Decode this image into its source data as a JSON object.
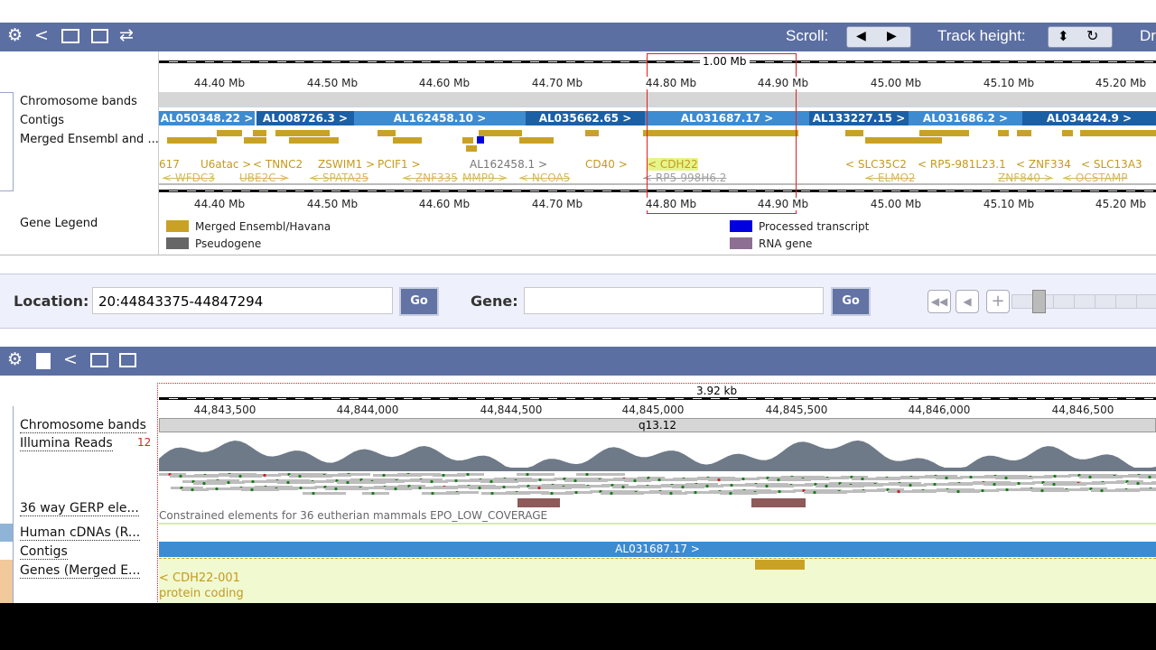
{
  "toolbar_top": {
    "scroll_label": "Scroll:",
    "track_height_label": "Track height:",
    "cut_label": "Dr"
  },
  "region_panel": {
    "scale_label": "1.00 Mb",
    "ticks": [
      "44.40 Mb",
      "44.50 Mb",
      "44.60 Mb",
      "44.70 Mb",
      "44.80 Mb",
      "44.90 Mb",
      "45.00 Mb",
      "45.10 Mb",
      "45.20 Mb"
    ],
    "track_labels": [
      "Chromosome bands",
      "Contigs",
      "Merged Ensembl and ...",
      "Gene Legend"
    ],
    "contigs": [
      "AL050348.22 >",
      "AL008726.3 >",
      "AL162458.10 >",
      "AL035662.65 >",
      "AL031687.17 >",
      "AL133227.15 >",
      "AL031686.2 >",
      "AL034424.9 >"
    ],
    "genes_row1": [
      "617",
      "U6atac >",
      "< TNNC2",
      "ZSWIM1 >",
      "PCIF1 >",
      "AL162458.1 >",
      "CD40 >",
      "< CDH22",
      "< SLC35C2",
      "< RP5-981L23.1",
      "< ZNF334",
      "< SLC13A3"
    ],
    "genes_row2": [
      "< WFDC3",
      "UBE2C >",
      "< SPATA25",
      "< ZNF335",
      "MMP9 >",
      "< NCOA5",
      "< RP5-998H6.2",
      "< ELMO2",
      "ZNF840 >",
      "< OCSTAMP"
    ],
    "legend": [
      "Merged Ensembl/Havana",
      "Pseudogene",
      "Processed transcript",
      "RNA gene"
    ]
  },
  "location_bar": {
    "location_label": "Location:",
    "location_value": "20:44843375-44847294",
    "go": "Go",
    "gene_label": "Gene:",
    "gene_go": "Go"
  },
  "detail_panel": {
    "scale_label": "3.92 kb",
    "ticks": [
      "44,843,500",
      "44,844,000",
      "44,844,500",
      "44,845,000",
      "44,845,500",
      "44,846,000",
      "44,846,500"
    ],
    "band": "q13.12",
    "track_labels": [
      "Chromosome bands",
      "Illumina Reads",
      "36 way GERP ele...",
      "Human cDNAs (R...",
      "Contigs",
      "Genes (Merged E..."
    ],
    "reads_count": "12",
    "constrained_text": "Constrained elements for 36 eutherian mammals EPO_LOW_COVERAGE",
    "contig": "AL031687.17 >",
    "gene_name": "< CDH22-001",
    "gene_biotype": "protein coding"
  }
}
